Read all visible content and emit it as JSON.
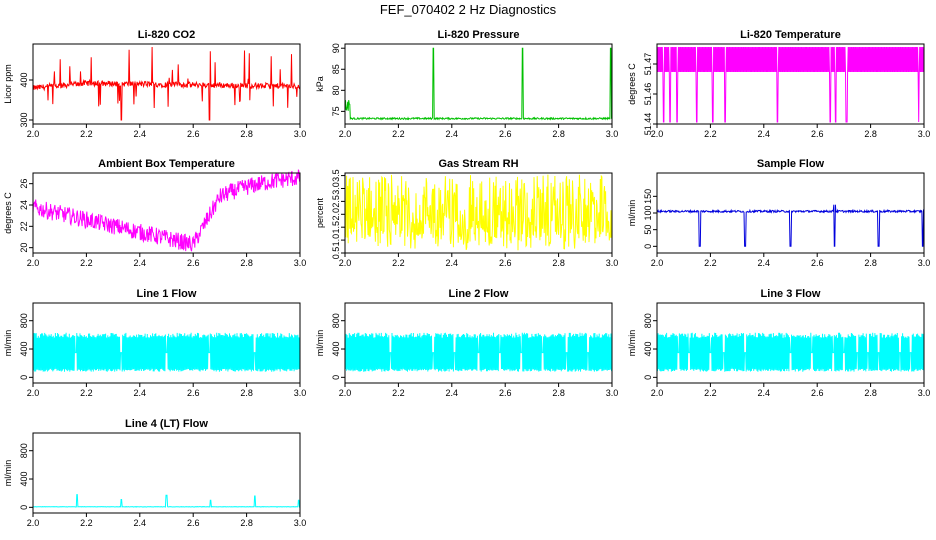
{
  "page": {
    "title": "FEF_070402  2 Hz Diagnostics"
  },
  "chart_data": [
    {
      "id": "co2",
      "type": "line",
      "title": "Li-820 CO2",
      "xlabel": "",
      "ylabel": "Licor ppm",
      "color": "#ff0000",
      "xlim": [
        2.0,
        3.0
      ],
      "ylim": [
        290,
        490
      ],
      "x_ticks": [
        "2.0",
        "2.2",
        "2.4",
        "2.6",
        "2.8",
        "3.0"
      ],
      "y_ticks": [
        {
          "v": 300,
          "t": "300"
        },
        {
          "v": 400,
          "t": "400"
        }
      ],
      "series": [
        {
          "name": "CO2",
          "gen": "co2"
        }
      ]
    },
    {
      "id": "pressure",
      "type": "line",
      "title": "Li-820 Pressure",
      "xlabel": "",
      "ylabel": "kPa",
      "color": "#00c000",
      "xlim": [
        2.0,
        3.0
      ],
      "ylim": [
        72,
        91
      ],
      "x_ticks": [
        "2.0",
        "2.2",
        "2.4",
        "2.6",
        "2.8",
        "3.0"
      ],
      "y_ticks": [
        {
          "v": 75,
          "t": "75"
        },
        {
          "v": 80,
          "t": "80"
        },
        {
          "v": 85,
          "t": "85"
        },
        {
          "v": 90,
          "t": "90"
        }
      ],
      "series": [
        {
          "name": "Pressure",
          "gen": "pressure"
        }
      ]
    },
    {
      "id": "temperature",
      "type": "line",
      "title": "Li-820 Temperature",
      "xlabel": "",
      "ylabel": "degrees C",
      "color": "#ff00ff",
      "xlim": [
        2.0,
        3.0
      ],
      "ylim": [
        51.44,
        51.48
      ],
      "x_ticks": [
        "2.0",
        "2.2",
        "2.4",
        "2.6",
        "2.8",
        "3.0"
      ],
      "y_ticks": [
        {
          "v": 51.44,
          "t": "51.44"
        },
        {
          "v": 51.455,
          "t": "51.46"
        },
        {
          "v": 51.47,
          "t": "51.47"
        }
      ],
      "series": [
        {
          "name": "Temperature",
          "gen": "licortemp"
        }
      ]
    },
    {
      "id": "ambient",
      "type": "line",
      "title": "Ambient Box Temperature",
      "xlabel": "",
      "ylabel": "degrees C",
      "color": "#ff00ff",
      "xlim": [
        2.0,
        3.0
      ],
      "ylim": [
        19.5,
        27
      ],
      "x_ticks": [
        "2.0",
        "2.2",
        "2.4",
        "2.6",
        "2.8",
        "3.0"
      ],
      "y_ticks": [
        {
          "v": 20,
          "t": "20"
        },
        {
          "v": 22,
          "t": "22"
        },
        {
          "v": 24,
          "t": "24"
        },
        {
          "v": 26,
          "t": "26"
        }
      ],
      "series": [
        {
          "name": "Ambient",
          "gen": "ambient"
        }
      ]
    },
    {
      "id": "rh",
      "type": "line",
      "title": "Gas Stream RH",
      "xlabel": "",
      "ylabel": "percent",
      "color": "#ffff00",
      "xlim": [
        2.0,
        3.0
      ],
      "ylim": [
        0.5,
        3.6
      ],
      "x_ticks": [
        "2.0",
        "2.2",
        "2.4",
        "2.6",
        "2.8",
        "3.0"
      ],
      "y_ticks": [
        {
          "v": 0.5,
          "t": "0.5"
        },
        {
          "v": 1.0,
          "t": "1.0"
        },
        {
          "v": 1.5,
          "t": "1.5"
        },
        {
          "v": 2.0,
          "t": "2.0"
        },
        {
          "v": 2.5,
          "t": "2.5"
        },
        {
          "v": 3.0,
          "t": "3.0"
        },
        {
          "v": 3.5,
          "t": "3.5"
        }
      ],
      "series": [
        {
          "name": "RH",
          "gen": "rh"
        }
      ]
    },
    {
      "id": "sampleflow",
      "type": "line",
      "title": "Sample Flow",
      "xlabel": "",
      "ylabel": "ml/min",
      "color": "#0000dd",
      "xlim": [
        2.0,
        3.0
      ],
      "ylim": [
        -20,
        220
      ],
      "x_ticks": [
        "2.0",
        "2.2",
        "2.4",
        "2.6",
        "2.8",
        "3.0"
      ],
      "y_ticks": [
        {
          "v": 0,
          "t": "0"
        },
        {
          "v": 50,
          "t": "50"
        },
        {
          "v": 100,
          "t": "100"
        },
        {
          "v": 150,
          "t": "150"
        }
      ],
      "series": [
        {
          "name": "Sample Flow",
          "gen": "sampleflow"
        }
      ]
    },
    {
      "id": "line1",
      "type": "line",
      "title": "Line 1 Flow",
      "xlabel": "",
      "ylabel": "ml/min",
      "color": "#00ffff",
      "xlim": [
        2.0,
        3.0
      ],
      "ylim": [
        -80,
        1050
      ],
      "x_ticks": [
        "2.0",
        "2.2",
        "2.4",
        "2.6",
        "2.8",
        "3.0"
      ],
      "y_ticks": [
        {
          "v": 0,
          "t": "0"
        },
        {
          "v": 400,
          "t": "400"
        },
        {
          "v": 800,
          "t": "800"
        }
      ],
      "series": [
        {
          "name": "Line 1",
          "gen": "lineflow",
          "gaps": [
            2.16,
            2.33,
            2.5,
            2.66,
            2.83
          ]
        }
      ]
    },
    {
      "id": "line2",
      "type": "line",
      "title": "Line 2 Flow",
      "xlabel": "",
      "ylabel": "ml/min",
      "color": "#00ffff",
      "xlim": [
        2.0,
        3.0
      ],
      "ylim": [
        -80,
        1050
      ],
      "x_ticks": [
        "2.0",
        "2.2",
        "2.4",
        "2.6",
        "2.8",
        "3.0"
      ],
      "y_ticks": [
        {
          "v": 0,
          "t": "0"
        },
        {
          "v": 400,
          "t": "400"
        },
        {
          "v": 800,
          "t": "800"
        }
      ],
      "series": [
        {
          "name": "Line 2",
          "gen": "lineflow",
          "gaps": [
            2.17,
            2.33,
            2.41,
            2.5,
            2.58,
            2.66,
            2.74,
            2.83,
            2.91
          ]
        }
      ]
    },
    {
      "id": "line3",
      "type": "line",
      "title": "Line 3 Flow",
      "xlabel": "",
      "ylabel": "ml/min",
      "color": "#00ffff",
      "xlim": [
        2.0,
        3.0
      ],
      "ylim": [
        -80,
        1050
      ],
      "x_ticks": [
        "2.0",
        "2.2",
        "2.4",
        "2.6",
        "2.8",
        "3.0"
      ],
      "y_ticks": [
        {
          "v": 0,
          "t": "0"
        },
        {
          "v": 400,
          "t": "400"
        },
        {
          "v": 800,
          "t": "800"
        }
      ],
      "series": [
        {
          "name": "Line 3",
          "gen": "lineflow",
          "gaps": [
            2.08,
            2.12,
            2.2,
            2.25,
            2.33,
            2.5,
            2.58,
            2.66,
            2.7,
            2.75,
            2.79,
            2.83,
            2.91,
            2.95
          ]
        }
      ]
    },
    {
      "id": "line4",
      "type": "line",
      "title": "Line 4 (LT) Flow",
      "xlabel": "",
      "ylabel": "ml/min",
      "color": "#00ffff",
      "xlim": [
        2.0,
        3.0
      ],
      "ylim": [
        -80,
        1050
      ],
      "x_ticks": [
        "2.0",
        "2.2",
        "2.4",
        "2.6",
        "2.8",
        "3.0"
      ],
      "y_ticks": [
        {
          "v": 0,
          "t": "0"
        },
        {
          "v": 400,
          "t": "400"
        },
        {
          "v": 800,
          "t": "800"
        }
      ],
      "series": [
        {
          "name": "Line 4",
          "gen": "line4",
          "spikes": [
            {
              "x": 2.165,
              "v": 180
            },
            {
              "x": 2.33,
              "v": 110
            },
            {
              "x": 2.5,
              "v": 170
            },
            {
              "x": 2.665,
              "v": 100
            },
            {
              "x": 2.83,
              "v": 160
            },
            {
              "x": 2.995,
              "v": 100
            }
          ]
        }
      ]
    }
  ]
}
